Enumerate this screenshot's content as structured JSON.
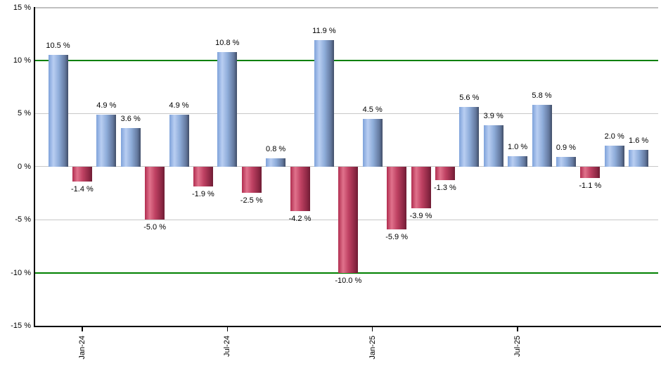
{
  "chart_data": {
    "type": "bar",
    "title": "",
    "subtitle": "",
    "xlabel": "",
    "ylabel": "",
    "y_axis": {
      "unit": "%",
      "min": -15,
      "max": 15,
      "step": 5,
      "tick_values": [
        15,
        10,
        5,
        0,
        -5,
        -10,
        -15
      ],
      "tick_labels": [
        "15 %",
        "10 %",
        "5 %",
        "0 %",
        "-5 %",
        "-10 %",
        "-15 %"
      ]
    },
    "x_axis": {
      "tick_labels": [
        "Jan-24",
        "Jul-24",
        "Jan-25",
        "Jul-25"
      ],
      "tick_bar_indices": [
        1,
        7,
        13,
        19
      ]
    },
    "values": [
      10.5,
      -1.4,
      4.9,
      3.6,
      -5.0,
      4.9,
      -1.9,
      10.8,
      -2.5,
      0.8,
      -4.2,
      11.9,
      -10.0,
      4.5,
      -5.9,
      -3.9,
      -1.3,
      5.6,
      3.9,
      1.0,
      5.8,
      0.9,
      -1.1,
      2.0,
      1.6
    ],
    "value_labels": [
      "10.5 %",
      "-1.4 %",
      "4.9 %",
      "3.6 %",
      "-5.0 %",
      "4.9 %",
      "-1.9 %",
      "10.8 %",
      "-2.5 %",
      "0.8 %",
      "-4.2 %",
      "11.9 %",
      "-10.0 %",
      "4.5 %",
      "-5.9 %",
      "-3.9 %",
      "-1.3 %",
      "5.6 %",
      "3.9 %",
      "1.0 %",
      "5.8 %",
      "0.9 %",
      "-1.1 %",
      "2.0 %",
      "1.6 %"
    ],
    "threshold_lines": [
      10,
      -10
    ],
    "gray_gridlines": [
      15,
      5,
      0,
      -5
    ],
    "grid": "on",
    "legend_position": "none",
    "colors": {
      "positive_bar": "#7ea2da",
      "positive_bar_highlight": "#b9cef2",
      "positive_bar_edge": "#414e68",
      "negative_bar": "#b12e50",
      "negative_bar_highlight": "#e0728c",
      "negative_bar_edge": "#6f1d34",
      "threshold_line": "#008000",
      "gridline": "#c8c8c8",
      "top_border": "#c0c0c0",
      "axis": "#000000",
      "background": "#ffffff"
    }
  }
}
